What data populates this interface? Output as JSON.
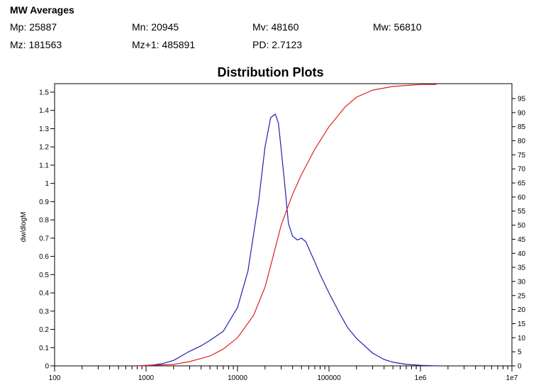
{
  "heading": "MW Averages",
  "averages": [
    {
      "label": "Mp: 25887"
    },
    {
      "label": "Mn: 20945"
    },
    {
      "label": "Mv: 48160"
    },
    {
      "label": "Mw: 56810"
    },
    {
      "label": "Mz: 181563"
    },
    {
      "label": "Mz+1: 485891"
    },
    {
      "label": "PD: 2.7123"
    }
  ],
  "chart_data": {
    "type": "line",
    "title": "Distribution Plots",
    "xlabel": "",
    "ylabel": "dw/dlogM",
    "y2label": "",
    "x_scale": "log",
    "xlim": [
      100,
      10000000
    ],
    "ylim": [
      0,
      1.6
    ],
    "y2lim": [
      0,
      100
    ],
    "grid": false,
    "x_tick_labels": [
      "100",
      "1000",
      "10000",
      "100000",
      "1e6",
      "1e7"
    ],
    "y_ticks": [
      "0",
      "0.1",
      "0.2",
      "0.3",
      "0.4",
      "0.5",
      "0.6",
      "0.7",
      "0.8",
      "0.9",
      "1",
      "1.1",
      "1.2",
      "1.3",
      "1.4",
      "1.5"
    ],
    "y2_ticks": [
      "0",
      "5",
      "10",
      "15",
      "20",
      "25",
      "30",
      "35",
      "40",
      "45",
      "50",
      "55",
      "60",
      "65",
      "70",
      "75",
      "80",
      "85",
      "90",
      "95"
    ],
    "colors": {
      "distribution": "#2020b0",
      "cumulative": "#e02020"
    },
    "series": [
      {
        "axis": "left",
        "x": [
          800,
          1200,
          1500,
          2000,
          3000,
          4000,
          5000,
          7000,
          10000,
          13000,
          17000,
          20000,
          23000,
          25887,
          28000,
          32000,
          36000,
          40000,
          45000,
          50000,
          56000,
          63000,
          70000,
          80000,
          100000,
          130000,
          160000,
          200000,
          300000,
          400000,
          500000,
          700000,
          1000000,
          1500000
        ],
        "y": [
          0.0,
          0.005,
          0.012,
          0.03,
          0.08,
          0.11,
          0.14,
          0.19,
          0.32,
          0.52,
          0.9,
          1.2,
          1.36,
          1.38,
          1.33,
          1.05,
          0.78,
          0.71,
          0.69,
          0.7,
          0.68,
          0.62,
          0.57,
          0.5,
          0.4,
          0.29,
          0.21,
          0.15,
          0.07,
          0.035,
          0.02,
          0.008,
          0.003,
          0.0
        ]
      },
      {
        "axis": "right",
        "x": [
          800,
          2000,
          3000,
          5000,
          7000,
          10000,
          15000,
          20000,
          25000,
          30000,
          40000,
          50000,
          70000,
          100000,
          150000,
          200000,
          300000,
          500000,
          800000,
          1000000,
          1500000
        ],
        "y": [
          0,
          0.5,
          1.5,
          3.5,
          6,
          10,
          18,
          28,
          40,
          50,
          61,
          68,
          77,
          85,
          92,
          95.5,
          98,
          99.3,
          99.8,
          100,
          100
        ]
      }
    ]
  }
}
